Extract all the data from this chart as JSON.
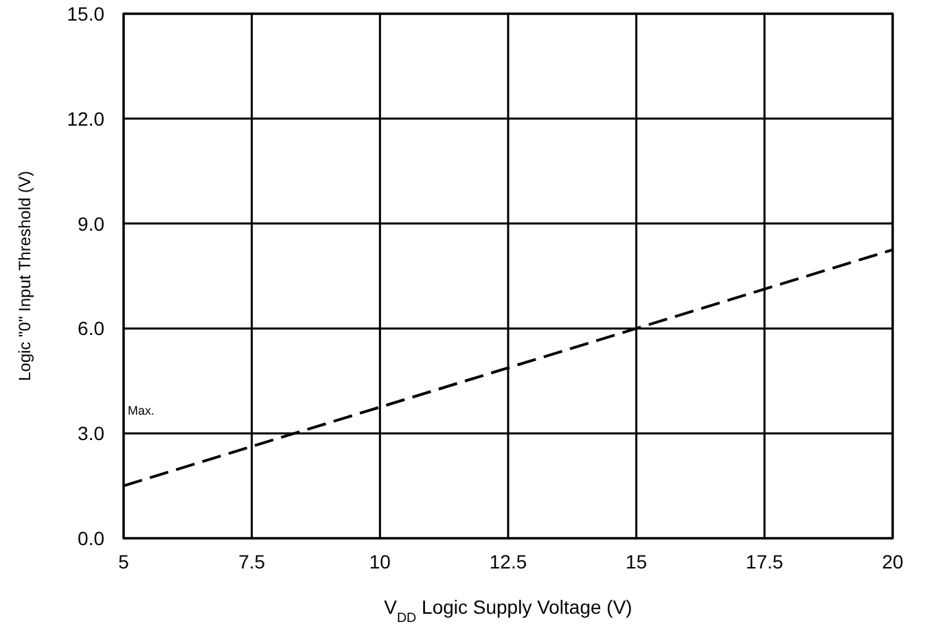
{
  "chart_data": {
    "type": "line",
    "xlabel": "V$_{DD}$ Logic Supply Voltage (V)",
    "ylabel": "Logic \"0\" Input Threshold (V)",
    "x": [
      5,
      20
    ],
    "series": [
      {
        "color": "#000000",
        "values": [
          1.5,
          8.25
        ],
        "line_style": "dashed"
      }
    ],
    "xlim": [
      5,
      20
    ],
    "xticks": [
      5,
      7.5,
      10,
      12.5,
      15,
      17.5,
      20
    ],
    "ylim": [
      0,
      15
    ],
    "yticks": [
      {
        "value": 0,
        "label": "0.0"
      },
      {
        "value": 3,
        "label": "3.0"
      },
      {
        "value": 6,
        "label": "6.0"
      },
      {
        "value": 9,
        "label": "9.0"
      },
      {
        "value": 12,
        "label": "12.0"
      },
      {
        "value": 15,
        "label": "15.0"
      }
    ],
    "grid": true,
    "marker": "none",
    "annotations": [
      "Max."
    ]
  }
}
